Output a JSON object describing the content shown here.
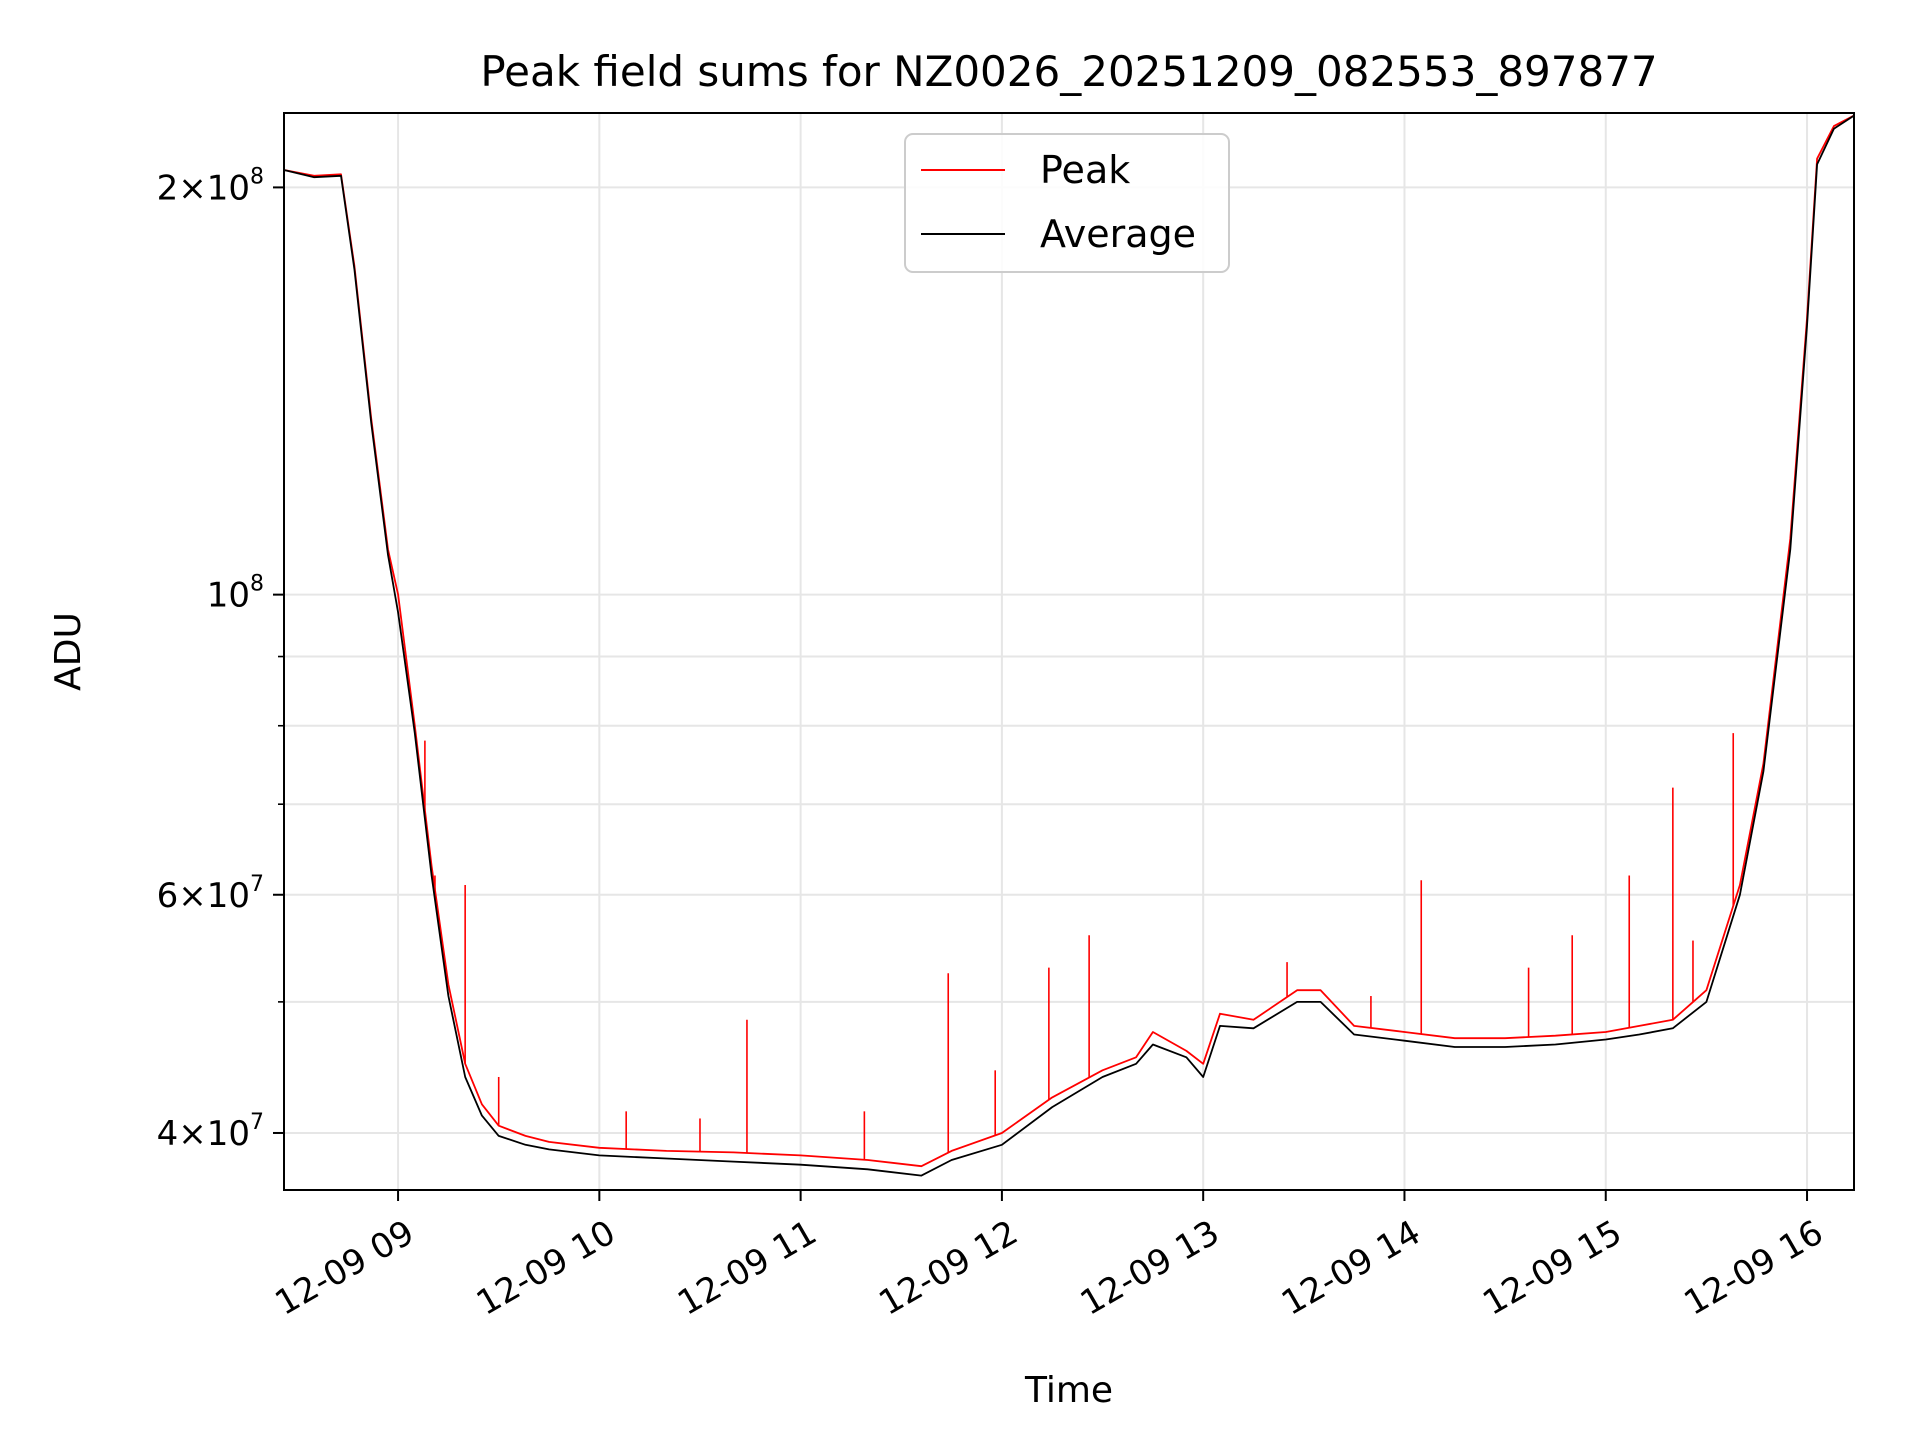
{
  "chart_data": {
    "type": "line",
    "title": "Peak field sums for NZ0026_20251209_082553_897877",
    "xlabel": "Time",
    "ylabel": "ADU",
    "yscale": "log",
    "grid": true,
    "legend": {
      "placement": "top-center"
    },
    "xlim": [
      "2025-12-09 08:26",
      "2025-12-09 16:14"
    ],
    "ylim": [
      36300000,
      227000000
    ],
    "x_ticks": [
      {
        "value": "2025-12-09 09:00",
        "label": "12-09 09"
      },
      {
        "value": "2025-12-09 10:00",
        "label": "12-09 10"
      },
      {
        "value": "2025-12-09 11:00",
        "label": "12-09 11"
      },
      {
        "value": "2025-12-09 12:00",
        "label": "12-09 12"
      },
      {
        "value": "2025-12-09 13:00",
        "label": "12-09 13"
      },
      {
        "value": "2025-12-09 14:00",
        "label": "12-09 14"
      },
      {
        "value": "2025-12-09 15:00",
        "label": "12-09 15"
      },
      {
        "value": "2025-12-09 16:00",
        "label": "12-09 16"
      }
    ],
    "y_ticks": [
      {
        "value": 200000000,
        "mantissa": "2",
        "exponent": "8"
      },
      {
        "value": 100000000,
        "mantissa": "",
        "exponent": "8"
      },
      {
        "value": 60000000,
        "mantissa": "6",
        "exponent": "7"
      },
      {
        "value": 40000000,
        "mantissa": "4",
        "exponent": "7"
      }
    ],
    "y_minor_ticks": [
      50000000,
      70000000,
      80000000,
      90000000
    ],
    "series": [
      {
        "name": "Peak",
        "color": "#ff0000",
        "x": [
          "2025-12-09 08:26",
          "2025-12-09 08:35",
          "2025-12-09 08:43",
          "2025-12-09 08:47",
          "2025-12-09 08:52",
          "2025-12-09 08:57",
          "2025-12-09 09:00",
          "2025-12-09 09:05",
          "2025-12-09 09:10",
          "2025-12-09 09:15",
          "2025-12-09 09:20",
          "2025-12-09 09:25",
          "2025-12-09 09:30",
          "2025-12-09 09:38",
          "2025-12-09 09:45",
          "2025-12-09 10:00",
          "2025-12-09 10:20",
          "2025-12-09 10:40",
          "2025-12-09 11:00",
          "2025-12-09 11:20",
          "2025-12-09 11:36",
          "2025-12-09 11:45",
          "2025-12-09 12:00",
          "2025-12-09 12:15",
          "2025-12-09 12:30",
          "2025-12-09 12:40",
          "2025-12-09 12:45",
          "2025-12-09 12:55",
          "2025-12-09 13:00",
          "2025-12-09 13:05",
          "2025-12-09 13:15",
          "2025-12-09 13:28",
          "2025-12-09 13:35",
          "2025-12-09 13:45",
          "2025-12-09 14:00",
          "2025-12-09 14:15",
          "2025-12-09 14:30",
          "2025-12-09 14:45",
          "2025-12-09 15:00",
          "2025-12-09 15:10",
          "2025-12-09 15:20",
          "2025-12-09 15:30",
          "2025-12-09 15:40",
          "2025-12-09 15:47",
          "2025-12-09 15:55",
          "2025-12-09 16:00",
          "2025-12-09 16:03",
          "2025-12-09 16:08",
          "2025-12-09 16:14"
        ],
        "y": [
          206000000,
          204000000,
          204500000,
          175000000,
          135000000,
          108000000,
          100000000,
          80000000,
          63000000,
          51500000,
          45000000,
          42000000,
          40500000,
          39800000,
          39400000,
          39000000,
          38800000,
          38700000,
          38500000,
          38200000,
          37800000,
          38800000,
          40000000,
          42500000,
          44500000,
          45500000,
          47500000,
          46000000,
          45000000,
          49000000,
          48500000,
          51000000,
          51000000,
          48000000,
          47500000,
          47000000,
          47000000,
          47200000,
          47500000,
          48000000,
          48500000,
          51000000,
          61000000,
          75000000,
          110000000,
          160000000,
          210000000,
          222000000,
          226000000
        ],
        "spikes": [
          {
            "x": "2025-12-09 09:08",
            "y": 78000000
          },
          {
            "x": "2025-12-09 09:11",
            "y": 62000000
          },
          {
            "x": "2025-12-09 09:20",
            "y": 61000000
          },
          {
            "x": "2025-12-09 09:16",
            "y": 50000000
          },
          {
            "x": "2025-12-09 09:30",
            "y": 44000000
          },
          {
            "x": "2025-12-09 10:08",
            "y": 41500000
          },
          {
            "x": "2025-12-09 10:30",
            "y": 41000000
          },
          {
            "x": "2025-12-09 10:44",
            "y": 48500000
          },
          {
            "x": "2025-12-09 11:19",
            "y": 41500000
          },
          {
            "x": "2025-12-09 11:44",
            "y": 52500000
          },
          {
            "x": "2025-12-09 11:58",
            "y": 44500000
          },
          {
            "x": "2025-12-09 12:14",
            "y": 53000000
          },
          {
            "x": "2025-12-09 12:26",
            "y": 56000000
          },
          {
            "x": "2025-12-09 13:25",
            "y": 53500000
          },
          {
            "x": "2025-12-09 13:50",
            "y": 50500000
          },
          {
            "x": "2025-12-09 14:05",
            "y": 61500000
          },
          {
            "x": "2025-12-09 14:37",
            "y": 53000000
          },
          {
            "x": "2025-12-09 14:50",
            "y": 56000000
          },
          {
            "x": "2025-12-09 15:07",
            "y": 62000000
          },
          {
            "x": "2025-12-09 15:20",
            "y": 72000000
          },
          {
            "x": "2025-12-09 15:26",
            "y": 55500000
          },
          {
            "x": "2025-12-09 15:38",
            "y": 79000000
          }
        ]
      },
      {
        "name": "Average",
        "color": "#000000",
        "x": [
          "2025-12-09 08:26",
          "2025-12-09 08:35",
          "2025-12-09 08:43",
          "2025-12-09 08:47",
          "2025-12-09 08:52",
          "2025-12-09 08:57",
          "2025-12-09 09:00",
          "2025-12-09 09:05",
          "2025-12-09 09:10",
          "2025-12-09 09:15",
          "2025-12-09 09:20",
          "2025-12-09 09:25",
          "2025-12-09 09:30",
          "2025-12-09 09:38",
          "2025-12-09 09:45",
          "2025-12-09 10:00",
          "2025-12-09 10:20",
          "2025-12-09 10:40",
          "2025-12-09 11:00",
          "2025-12-09 11:20",
          "2025-12-09 11:36",
          "2025-12-09 11:45",
          "2025-12-09 12:00",
          "2025-12-09 12:15",
          "2025-12-09 12:30",
          "2025-12-09 12:40",
          "2025-12-09 12:45",
          "2025-12-09 12:55",
          "2025-12-09 13:00",
          "2025-12-09 13:05",
          "2025-12-09 13:15",
          "2025-12-09 13:28",
          "2025-12-09 13:35",
          "2025-12-09 13:45",
          "2025-12-09 14:00",
          "2025-12-09 14:15",
          "2025-12-09 14:30",
          "2025-12-09 14:45",
          "2025-12-09 15:00",
          "2025-12-09 15:10",
          "2025-12-09 15:20",
          "2025-12-09 15:30",
          "2025-12-09 15:40",
          "2025-12-09 15:47",
          "2025-12-09 15:55",
          "2025-12-09 16:00",
          "2025-12-09 16:03",
          "2025-12-09 16:08",
          "2025-12-09 16:14"
        ],
        "y": [
          206000000,
          203500000,
          204000000,
          174000000,
          134000000,
          107000000,
          97000000,
          79000000,
          62000000,
          50500000,
          44000000,
          41200000,
          39800000,
          39200000,
          38900000,
          38500000,
          38300000,
          38100000,
          37900000,
          37600000,
          37200000,
          38200000,
          39200000,
          41800000,
          44000000,
          45000000,
          46500000,
          45500000,
          44000000,
          48000000,
          47800000,
          50000000,
          50000000,
          47300000,
          46800000,
          46300000,
          46300000,
          46500000,
          46900000,
          47300000,
          47800000,
          50000000,
          60000000,
          74000000,
          108000000,
          158000000,
          208000000,
          221000000,
          226000000
        ]
      }
    ]
  }
}
